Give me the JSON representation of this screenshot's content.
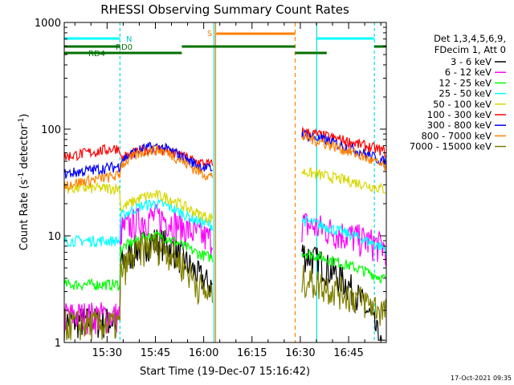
{
  "chart_data": {
    "type": "line",
    "title": "RHESSI Observing Summary Count Rates",
    "xlabel": "Start Time (19-Dec-07 15:16:42)",
    "ylabel_main": "Count Rate (s",
    "ylabel_sup1": "-1",
    "ylabel_mid": " detector",
    "ylabel_sup2": "-1",
    "ylabel_end": ")",
    "x_unit": "minutes since 15:16:42",
    "xlim": [
      0,
      100
    ],
    "ylim": [
      1,
      1000
    ],
    "yscale": "log",
    "yticks": [
      {
        "value": 1,
        "label": "1"
      },
      {
        "value": 10,
        "label": "10"
      },
      {
        "value": 100,
        "label": "100"
      },
      {
        "value": 1000,
        "label": "1000"
      }
    ],
    "xticks": [
      {
        "value": 13.3,
        "label": "15:30"
      },
      {
        "value": 28.3,
        "label": "15:45"
      },
      {
        "value": 43.3,
        "label": "16:00"
      },
      {
        "value": 58.3,
        "label": "16:15"
      },
      {
        "value": 73.3,
        "label": "16:30"
      },
      {
        "value": 88.3,
        "label": "16:45"
      }
    ],
    "legend_header": [
      "Det 1,3,4,5,6,9,",
      "FDecim 1, Att 0"
    ],
    "legend_placement": "right",
    "series": [
      {
        "name": "3 - 6 keV",
        "color": "#000000"
      },
      {
        "name": "6 - 12 keV",
        "color": "#ff00ff"
      },
      {
        "name": "12 - 25 keV",
        "color": "#00ff00"
      },
      {
        "name": "25 - 50 keV",
        "color": "#00ffff"
      },
      {
        "name": "50 - 100 keV",
        "color": "#d8d800"
      },
      {
        "name": "100 - 300 keV",
        "color": "#ff0000"
      },
      {
        "name": "300 - 800 keV",
        "color": "#0000ff"
      },
      {
        "name": "800 - 7000 keV",
        "color": "#ff8000"
      },
      {
        "name": "7000 - 15000 keV",
        "color": "#808000"
      }
    ],
    "flag_labels": {
      "night": "N",
      "saa": "S",
      "rd0": "RD0",
      "rd4": "RD4"
    }
  },
  "footer": {
    "timestamp": "17-Oct-2021 09:35"
  }
}
